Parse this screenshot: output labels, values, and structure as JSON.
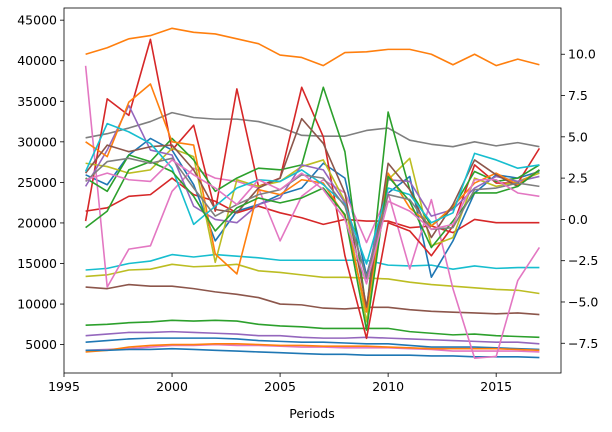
{
  "chart_data": {
    "type": "line",
    "title": "",
    "xlabel": "Periods",
    "ylabel": "",
    "x": [
      1996,
      1997,
      1998,
      1999,
      2000,
      2001,
      2002,
      2003,
      2004,
      2005,
      2006,
      2007,
      2008,
      2009,
      2010,
      2011,
      2012,
      2013,
      2014,
      2015,
      2016,
      2017
    ],
    "xlim": [
      1995.0,
      2018.0
    ],
    "xticks": [
      1995,
      2000,
      2005,
      2010,
      2015
    ],
    "ylim_left": [
      1500,
      46500
    ],
    "yticks_left": [
      5000,
      10000,
      15000,
      20000,
      25000,
      30000,
      35000,
      40000,
      45000
    ],
    "ylim_right": [
      -9.3,
      12.8
    ],
    "yticks_right": [
      -7.5,
      -5.0,
      -2.5,
      0.0,
      2.5,
      5.0,
      7.5,
      10.0
    ],
    "grid": false,
    "legend": "none",
    "series": [
      {
        "axis": "left",
        "color": "#ff7f0e",
        "values": [
          40800,
          41600,
          42700,
          43100,
          44000,
          43500,
          43300,
          42700,
          42100,
          40700,
          40400,
          39400,
          41000,
          41100,
          41400,
          41400,
          40800,
          39500,
          40800,
          39400,
          40200,
          39500
        ]
      },
      {
        "axis": "left",
        "color": "#7f7f7f",
        "values": [
          30500,
          31000,
          31700,
          32500,
          33600,
          33000,
          32800,
          32800,
          32500,
          31800,
          30800,
          30700,
          30700,
          31400,
          31700,
          30200,
          29700,
          29400,
          30000,
          29500,
          29900,
          29400
        ]
      },
      {
        "axis": "left",
        "color": "#17becf",
        "values": [
          14200,
          14400,
          15000,
          15300,
          16100,
          15800,
          16100,
          15900,
          15700,
          15400,
          15400,
          15400,
          15400,
          15400,
          14800,
          14700,
          14800,
          14300,
          14700,
          14400,
          14500,
          14500
        ]
      },
      {
        "axis": "left",
        "color": "#bcbd22",
        "values": [
          13400,
          13600,
          14200,
          14300,
          14900,
          14600,
          14700,
          14900,
          14100,
          13900,
          13600,
          13300,
          13300,
          13200,
          13100,
          12700,
          12400,
          12200,
          12000,
          11800,
          11700,
          11300
        ]
      },
      {
        "axis": "left",
        "color": "#8c564b",
        "values": [
          12100,
          11900,
          12400,
          12200,
          12200,
          11900,
          11500,
          11200,
          10800,
          10000,
          9900,
          9500,
          9400,
          9600,
          9600,
          9300,
          9100,
          9000,
          8900,
          8800,
          8900,
          8700
        ]
      },
      {
        "axis": "left",
        "color": "#2ca02c",
        "values": [
          7400,
          7500,
          7700,
          7800,
          8000,
          7900,
          8000,
          7900,
          7500,
          7300,
          7200,
          7000,
          7000,
          7000,
          7000,
          6600,
          6400,
          6200,
          6300,
          6100,
          6000,
          5900
        ]
      },
      {
        "axis": "left",
        "color": "#9467bd",
        "values": [
          6100,
          6300,
          6500,
          6500,
          6600,
          6500,
          6400,
          6300,
          6100,
          6100,
          5900,
          5800,
          5800,
          5900,
          5800,
          5700,
          5600,
          5500,
          5400,
          5300,
          5300,
          5100
        ]
      },
      {
        "axis": "left",
        "color": "#1f77b4",
        "values": [
          5300,
          5500,
          5700,
          5800,
          5800,
          5800,
          5800,
          5700,
          5500,
          5400,
          5300,
          5300,
          5200,
          5100,
          5100,
          4900,
          4700,
          4700,
          4700,
          4600,
          4500,
          4400
        ]
      },
      {
        "axis": "left",
        "color": "#e377c2",
        "values": [
          4300,
          4400,
          4500,
          4700,
          4900,
          4900,
          5000,
          4900,
          4900,
          4800,
          4700,
          4700,
          4600,
          4600,
          4600,
          4500,
          4400,
          4200,
          4200,
          4200,
          4200,
          4100
        ]
      },
      {
        "axis": "left",
        "color": "#ff7f0e",
        "values": [
          4100,
          4300,
          4700,
          4900,
          5000,
          5000,
          5100,
          5100,
          5000,
          4900,
          4900,
          4800,
          4800,
          4800,
          4700,
          4600,
          4500,
          4500,
          4500,
          4500,
          4400,
          4300
        ]
      },
      {
        "axis": "left",
        "color": "#1f77b4",
        "values": [
          4300,
          4300,
          4400,
          4400,
          4500,
          4400,
          4300,
          4200,
          4100,
          4000,
          3900,
          3800,
          3800,
          3700,
          3700,
          3700,
          3600,
          3600,
          3500,
          3500,
          3500,
          3400
        ]
      },
      {
        "axis": "right",
        "color": "#d62728",
        "values": [
          0.5,
          0.7,
          1.4,
          1.5,
          2.5,
          1.5,
          1.1,
          0.4,
          0.8,
          0.4,
          0.1,
          -0.3,
          0.0,
          -0.1,
          -0.1,
          -0.5,
          -0.4,
          -0.8,
          0.0,
          -0.2,
          -0.2,
          -0.2
        ]
      },
      {
        "axis": "right",
        "color": "#1f77b4",
        "values": [
          2.7,
          2.1,
          3.9,
          4.9,
          4.2,
          2.1,
          -1.3,
          0.5,
          0.9,
          1.5,
          1.9,
          3.4,
          2.5,
          -3.4,
          1.6,
          2.6,
          -3.5,
          -1.3,
          1.6,
          2.7,
          2.5,
          2.9
        ]
      },
      {
        "axis": "right",
        "color": "#e377c2",
        "values": [
          9.3,
          -4.1,
          -1.8,
          -1.6,
          1.7,
          3.1,
          2.5,
          2.3,
          1.9,
          -1.3,
          1.4,
          2.4,
          1.6,
          -1.4,
          1.6,
          -3.0,
          1.2,
          -4.2,
          -8.4,
          -8.3,
          -3.7,
          -1.7
        ]
      },
      {
        "axis": "right",
        "color": "#d62728",
        "values": [
          -0.1,
          7.3,
          6.3,
          10.9,
          4.2,
          5.7,
          0.5,
          7.9,
          2.0,
          2.5,
          8.0,
          5.0,
          -2.2,
          -7.2,
          -0.2,
          -0.7,
          -2.2,
          -0.4,
          3.3,
          2.2,
          2.2,
          4.3
        ]
      },
      {
        "axis": "right",
        "color": "#bcbd22",
        "values": [
          3.4,
          3.2,
          2.8,
          3.0,
          4.3,
          3.8,
          -2.6,
          2.4,
          2.0,
          2.3,
          3.2,
          3.6,
          1.1,
          -6.2,
          2.4,
          3.7,
          -1.6,
          -1.1,
          2.5,
          2.0,
          2.3,
          2.8
        ]
      },
      {
        "axis": "right",
        "color": "#2ca02c",
        "values": [
          2.5,
          1.7,
          3.9,
          3.5,
          4.9,
          3.6,
          1.7,
          2.5,
          3.1,
          3.0,
          3.3,
          8.0,
          4.1,
          -5.6,
          6.5,
          1.8,
          -0.4,
          0.7,
          2.9,
          2.3,
          2.5,
          3.3
        ]
      },
      {
        "axis": "right",
        "color": "#9467bd",
        "values": [
          2.0,
          4.2,
          6.9,
          4.2,
          3.9,
          0.8,
          0.0,
          -0.2,
          0.9,
          1.3,
          3.3,
          3.0,
          1.0,
          -3.6,
          2.4,
          2.3,
          0.2,
          0.6,
          1.9,
          2.6,
          2.3,
          2.6
        ]
      },
      {
        "axis": "right",
        "color": "#ff7f0e",
        "values": [
          4.7,
          3.8,
          7.1,
          8.2,
          4.7,
          4.5,
          -2.1,
          -3.3,
          1.8,
          1.5,
          2.4,
          2.2,
          0.2,
          -5.6,
          2.8,
          0.7,
          -0.4,
          0.8,
          2.2,
          2.8,
          2.1,
          3.0
        ]
      },
      {
        "axis": "right",
        "color": "#8c564b",
        "values": [
          2.8,
          4.5,
          4.1,
          4.4,
          4.5,
          3.0,
          0.6,
          0.4,
          1.9,
          2.5,
          6.1,
          4.6,
          1.6,
          -5.3,
          3.4,
          1.8,
          -1.1,
          0.9,
          3.6,
          2.7,
          2.0,
          3.0
        ]
      },
      {
        "axis": "right",
        "color": "#17becf",
        "values": [
          2.9,
          5.8,
          5.3,
          4.6,
          3.1,
          -0.3,
          0.8,
          1.9,
          2.4,
          2.3,
          3.0,
          2.1,
          0.9,
          -2.7,
          1.9,
          1.5,
          -0.2,
          0.4,
          4.0,
          3.6,
          3.1,
          3.3
        ]
      },
      {
        "axis": "right",
        "color": "#2ca02c",
        "values": [
          -0.5,
          0.5,
          3.0,
          3.5,
          2.9,
          1.4,
          -0.7,
          0.7,
          1.3,
          1.0,
          1.3,
          1.9,
          0.3,
          -6.7,
          2.6,
          1.1,
          -1.7,
          -0.1,
          1.6,
          1.6,
          2.0,
          3.0
        ]
      },
      {
        "axis": "right",
        "color": "#7f7f7f",
        "values": [
          2.3,
          3.5,
          3.7,
          3.4,
          3.7,
          1.9,
          0.2,
          0.9,
          1.5,
          1.8,
          2.7,
          2.5,
          0.8,
          -3.5,
          1.5,
          1.2,
          -0.6,
          -0.5,
          1.8,
          1.9,
          2.2,
          2.0
        ]
      },
      {
        "axis": "right",
        "color": "#e377c2",
        "values": [
          2.4,
          2.8,
          2.4,
          2.3,
          3.6,
          2.7,
          1.9,
          0.9,
          2.4,
          1.8,
          2.8,
          1.8,
          0.0,
          -3.9,
          1.1,
          0.5,
          -0.6,
          -0.3,
          2.4,
          2.4,
          1.6,
          1.4
        ]
      }
    ]
  }
}
